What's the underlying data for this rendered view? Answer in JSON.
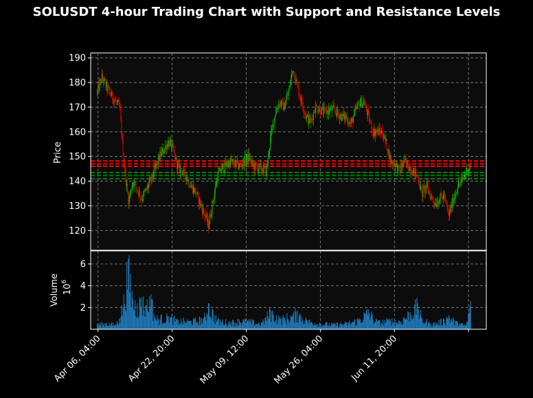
{
  "chart_data": {
    "type": "candlestick",
    "title": "SOLUSDT 4-hour Trading Chart with Support and Resistance Levels",
    "price_panel": {
      "ylabel": "Price",
      "ylim": [
        112,
        192
      ],
      "yticks": [
        120,
        130,
        140,
        150,
        160,
        170,
        180,
        190
      ],
      "grid": true,
      "up_color": "#00d000",
      "down_color": "#ff0000",
      "background": "#0c0c0c",
      "resistance_levels": [
        148.2,
        147.0,
        146.0
      ],
      "resistance_color": "#ff0000",
      "support_levels": [
        143.5,
        142.3,
        141.0
      ],
      "support_color": "#008000",
      "close_series_approx": [
        {
          "t": "2024-04-06",
          "v": 176
        },
        {
          "t": "2024-04-07",
          "v": 182
        },
        {
          "t": "2024-04-09",
          "v": 175
        },
        {
          "t": "2024-04-11",
          "v": 170
        },
        {
          "t": "2024-04-12",
          "v": 147
        },
        {
          "t": "2024-04-13",
          "v": 132
        },
        {
          "t": "2024-04-14",
          "v": 140
        },
        {
          "t": "2024-04-16",
          "v": 133
        },
        {
          "t": "2024-04-18",
          "v": 140
        },
        {
          "t": "2024-04-19",
          "v": 145
        },
        {
          "t": "2024-04-20",
          "v": 150
        },
        {
          "t": "2024-04-22",
          "v": 156
        },
        {
          "t": "2024-04-23",
          "v": 153
        },
        {
          "t": "2024-04-24",
          "v": 146
        },
        {
          "t": "2024-04-26",
          "v": 142
        },
        {
          "t": "2024-04-27",
          "v": 138
        },
        {
          "t": "2024-04-28",
          "v": 136
        },
        {
          "t": "2024-04-30",
          "v": 127
        },
        {
          "t": "2024-05-01",
          "v": 122
        },
        {
          "t": "2024-05-02",
          "v": 132
        },
        {
          "t": "2024-05-03",
          "v": 142
        },
        {
          "t": "2024-05-04",
          "v": 145
        },
        {
          "t": "2024-05-06",
          "v": 148
        },
        {
          "t": "2024-05-07",
          "v": 147
        },
        {
          "t": "2024-05-08",
          "v": 146
        },
        {
          "t": "2024-05-09",
          "v": 148
        },
        {
          "t": "2024-05-10",
          "v": 150
        },
        {
          "t": "2024-05-11",
          "v": 146
        },
        {
          "t": "2024-05-13",
          "v": 145
        },
        {
          "t": "2024-05-14",
          "v": 144
        },
        {
          "t": "2024-05-15",
          "v": 158
        },
        {
          "t": "2024-05-16",
          "v": 168
        },
        {
          "t": "2024-05-17",
          "v": 172
        },
        {
          "t": "2024-05-18",
          "v": 170
        },
        {
          "t": "2024-05-19",
          "v": 176
        },
        {
          "t": "2024-05-20",
          "v": 186
        },
        {
          "t": "2024-05-21",
          "v": 178
        },
        {
          "t": "2024-05-22",
          "v": 172
        },
        {
          "t": "2024-05-23",
          "v": 166
        },
        {
          "t": "2024-05-24",
          "v": 164
        },
        {
          "t": "2024-05-25",
          "v": 170
        },
        {
          "t": "2024-05-27",
          "v": 168
        },
        {
          "t": "2024-05-29",
          "v": 169
        },
        {
          "t": "2024-05-31",
          "v": 166
        },
        {
          "t": "2024-06-01",
          "v": 166
        },
        {
          "t": "2024-06-02",
          "v": 163
        },
        {
          "t": "2024-06-03",
          "v": 168
        },
        {
          "t": "2024-06-04",
          "v": 172
        },
        {
          "t": "2024-06-05",
          "v": 172
        },
        {
          "t": "2024-06-06",
          "v": 166
        },
        {
          "t": "2024-06-07",
          "v": 160
        },
        {
          "t": "2024-06-09",
          "v": 160
        },
        {
          "t": "2024-06-10",
          "v": 155
        },
        {
          "t": "2024-06-11",
          "v": 148
        },
        {
          "t": "2024-06-12",
          "v": 147
        },
        {
          "t": "2024-06-13",
          "v": 144
        },
        {
          "t": "2024-06-14",
          "v": 148
        },
        {
          "t": "2024-06-15",
          "v": 146
        },
        {
          "t": "2024-06-16",
          "v": 144
        },
        {
          "t": "2024-06-17",
          "v": 142
        },
        {
          "t": "2024-06-18",
          "v": 135
        },
        {
          "t": "2024-06-19",
          "v": 138
        },
        {
          "t": "2024-06-20",
          "v": 134
        },
        {
          "t": "2024-06-21",
          "v": 131
        },
        {
          "t": "2024-06-22",
          "v": 133
        },
        {
          "t": "2024-06-23",
          "v": 134
        },
        {
          "t": "2024-06-24",
          "v": 126
        },
        {
          "t": "2024-06-25",
          "v": 132
        },
        {
          "t": "2024-06-26",
          "v": 138
        },
        {
          "t": "2024-06-27",
          "v": 140
        },
        {
          "t": "2024-06-28",
          "v": 144
        },
        {
          "t": "2024-06-29",
          "v": 146
        }
      ]
    },
    "volume_panel": {
      "ylabel": "Volume",
      "scale_label": "10",
      "scale_exponent": "6",
      "ylim": [
        0,
        7.2
      ],
      "yticks": [
        2,
        4,
        6
      ],
      "bar_color": "#1f77b4",
      "grid": true,
      "series_approx": [
        {
          "t": "2024-04-06",
          "v": 0.5
        },
        {
          "t": "2024-04-08",
          "v": 0.6
        },
        {
          "t": "2024-04-10",
          "v": 0.5
        },
        {
          "t": "2024-04-11",
          "v": 1.0
        },
        {
          "t": "2024-04-12",
          "v": 3.2
        },
        {
          "t": "2024-04-13",
          "v": 6.5
        },
        {
          "t": "2024-04-14",
          "v": 2.8
        },
        {
          "t": "2024-04-15",
          "v": 2.4
        },
        {
          "t": "2024-04-16",
          "v": 2.9
        },
        {
          "t": "2024-04-17",
          "v": 2.2
        },
        {
          "t": "2024-04-18",
          "v": 3.2
        },
        {
          "t": "2024-04-19",
          "v": 1.1
        },
        {
          "t": "2024-04-22",
          "v": 1.2
        },
        {
          "t": "2024-04-24",
          "v": 0.9
        },
        {
          "t": "2024-04-27",
          "v": 0.8
        },
        {
          "t": "2024-04-30",
          "v": 1.1
        },
        {
          "t": "2024-05-01",
          "v": 2.4
        },
        {
          "t": "2024-05-03",
          "v": 0.9
        },
        {
          "t": "2024-05-06",
          "v": 0.7
        },
        {
          "t": "2024-05-08",
          "v": 0.9
        },
        {
          "t": "2024-05-10",
          "v": 0.8
        },
        {
          "t": "2024-05-13",
          "v": 0.6
        },
        {
          "t": "2024-05-15",
          "v": 1.8
        },
        {
          "t": "2024-05-17",
          "v": 1.0
        },
        {
          "t": "2024-05-20",
          "v": 1.4
        },
        {
          "t": "2024-05-21",
          "v": 1.7
        },
        {
          "t": "2024-05-23",
          "v": 0.9
        },
        {
          "t": "2024-05-26",
          "v": 0.6
        },
        {
          "t": "2024-05-29",
          "v": 0.5
        },
        {
          "t": "2024-06-01",
          "v": 0.6
        },
        {
          "t": "2024-06-04",
          "v": 1.0
        },
        {
          "t": "2024-06-06",
          "v": 1.8
        },
        {
          "t": "2024-06-08",
          "v": 0.7
        },
        {
          "t": "2024-06-11",
          "v": 0.9
        },
        {
          "t": "2024-06-13",
          "v": 0.8
        },
        {
          "t": "2024-06-14",
          "v": 1.1
        },
        {
          "t": "2024-06-17",
          "v": 2.4
        },
        {
          "t": "2024-06-18",
          "v": 1.1
        },
        {
          "t": "2024-06-20",
          "v": 0.5
        },
        {
          "t": "2024-06-23",
          "v": 0.9
        },
        {
          "t": "2024-06-24",
          "v": 1.3
        },
        {
          "t": "2024-06-26",
          "v": 0.6
        },
        {
          "t": "2024-06-28",
          "v": 0.4
        },
        {
          "t": "2024-06-29",
          "v": 2.6
        }
      ]
    },
    "x_axis": {
      "start": "2024-04-04T12:00",
      "end": "2024-07-02T12:00",
      "ticks": [
        {
          "t": "2024-04-06T04:00",
          "label": "Apr 06, 04:00"
        },
        {
          "t": "2024-04-22T20:00",
          "label": "Apr 22, 20:00"
        },
        {
          "t": "2024-05-09T12:00",
          "label": "May 09, 12:00"
        },
        {
          "t": "2024-05-26T04:00",
          "label": "May 26, 04:00"
        },
        {
          "t": "2024-06-11T20:00",
          "label": "Jun 11, 20:00"
        },
        {
          "t": "2024-06-28T12:00",
          "label": ""
        }
      ]
    }
  }
}
